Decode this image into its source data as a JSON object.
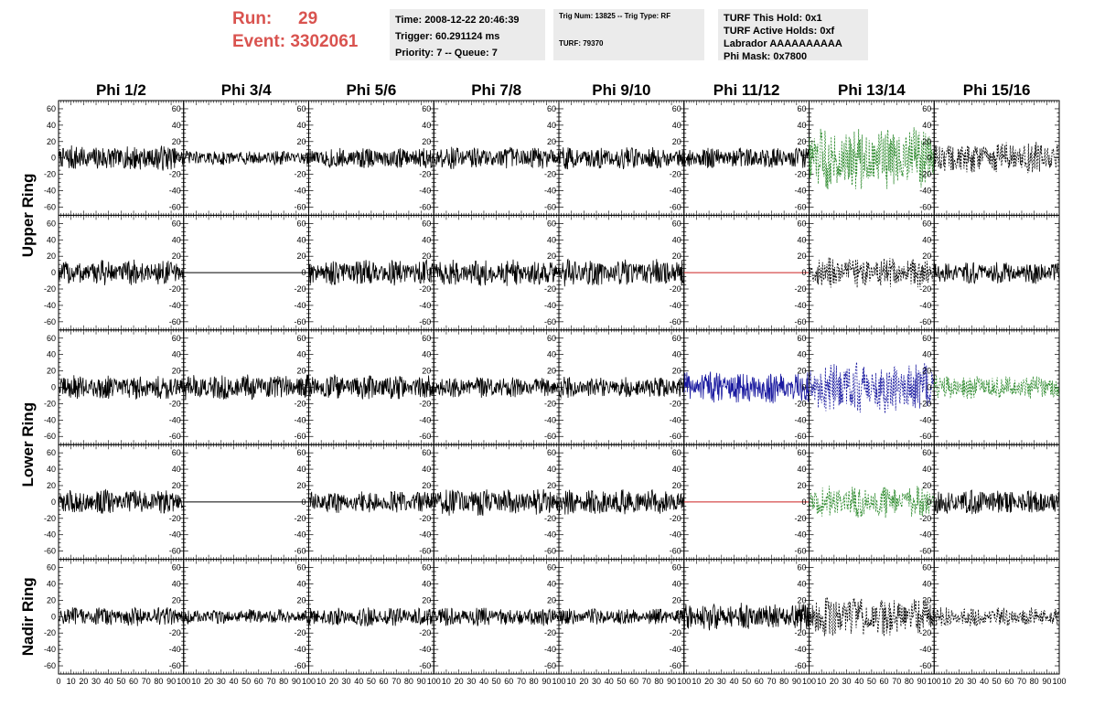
{
  "header": {
    "run_label": "Run:",
    "run_value": "29",
    "event_label": "Event:",
    "event_value": "3302061",
    "time_line": "Time: 2008-12-22 20:46:39",
    "trigger_line": "Trigger: 60.291124 ms",
    "priority_line": "Priority: 7 -- Queue: 7",
    "trig_num_line": "Trig Num: 13825 -- Trig Type: RF",
    "turf_line": "TURF: 79370",
    "turf_hold_line": "TURF This Hold: 0x1",
    "turf_active_line": "TURF Active Holds: 0xf",
    "labrador_line": "Labrador AAAAAAAAAA",
    "phi_mask_line": "Phi Mask: 0x7800"
  },
  "colors": {
    "header_text": "#d9534f",
    "info_bg": "#ebebeb",
    "trace_default": "#000000",
    "trace_green": "#2e8b2e",
    "trace_blue": "#1a1aa0",
    "trace_red": "#cc2222"
  },
  "chart_data": {
    "type": "line",
    "columns": [
      "Phi 1/2",
      "Phi 3/4",
      "Phi 5/6",
      "Phi 7/8",
      "Phi 9/10",
      "Phi 11/12",
      "Phi 13/14",
      "Phi 15/16"
    ],
    "rows": [
      "Upper Ring",
      "Upper Ring",
      "Lower Ring",
      "Lower Ring",
      "Nadir Ring"
    ],
    "ring_labels": [
      "Upper Ring",
      "Lower Ring",
      "Nadir Ring"
    ],
    "ylim": [
      -70,
      70
    ],
    "y_ticks": [
      -60,
      -40,
      -20,
      0,
      20,
      40,
      60
    ],
    "xlim": [
      0,
      100
    ],
    "x_tick_labels": [
      "0",
      "10",
      "20",
      "30",
      "40",
      "50",
      "60",
      "70",
      "80",
      "90",
      "100"
    ],
    "panels": [
      [
        {
          "style": "solid",
          "color": "black",
          "amp": 16,
          "flat": false
        },
        {
          "style": "solid",
          "color": "black",
          "amp": 9,
          "flat": false
        },
        {
          "style": "solid",
          "color": "black",
          "amp": 13,
          "flat": false
        },
        {
          "style": "solid",
          "color": "black",
          "amp": 14,
          "flat": false
        },
        {
          "style": "solid",
          "color": "black",
          "amp": 14,
          "flat": false
        },
        {
          "style": "solid",
          "color": "black",
          "amp": 13,
          "flat": false
        },
        {
          "style": "dashed",
          "color": "green",
          "amp": 40,
          "flat": false
        },
        {
          "style": "dashed",
          "color": "black",
          "amp": 20,
          "flat": false
        }
      ],
      [
        {
          "style": "solid",
          "color": "black",
          "amp": 16,
          "flat": false
        },
        {
          "style": "solid",
          "color": "black",
          "amp": 0,
          "flat": true
        },
        {
          "style": "solid",
          "color": "black",
          "amp": 16,
          "flat": false
        },
        {
          "style": "solid",
          "color": "black",
          "amp": 17,
          "flat": false
        },
        {
          "style": "solid",
          "color": "black",
          "amp": 17,
          "flat": false
        },
        {
          "style": "solid",
          "color": "red",
          "amp": 0,
          "flat": true
        },
        {
          "style": "dashed",
          "color": "black",
          "amp": 19,
          "flat": false
        },
        {
          "style": "solid",
          "color": "black",
          "amp": 14,
          "flat": false
        }
      ],
      [
        {
          "style": "solid",
          "color": "black",
          "amp": 15,
          "flat": false
        },
        {
          "style": "solid",
          "color": "black",
          "amp": 16,
          "flat": false
        },
        {
          "style": "solid",
          "color": "black",
          "amp": 15,
          "flat": false
        },
        {
          "style": "solid",
          "color": "black",
          "amp": 13,
          "flat": false
        },
        {
          "style": "solid",
          "color": "black",
          "amp": 13,
          "flat": false
        },
        {
          "style": "solid",
          "color": "blue",
          "amp": 20,
          "flat": false
        },
        {
          "style": "dashed",
          "color": "blue",
          "amp": 34,
          "flat": false
        },
        {
          "style": "dashed",
          "color": "green",
          "amp": 15,
          "flat": false
        }
      ],
      [
        {
          "style": "solid",
          "color": "black",
          "amp": 15,
          "flat": false
        },
        {
          "style": "solid",
          "color": "black",
          "amp": 0,
          "flat": true
        },
        {
          "style": "solid",
          "color": "black",
          "amp": 14,
          "flat": false
        },
        {
          "style": "solid",
          "color": "black",
          "amp": 17,
          "flat": false
        },
        {
          "style": "solid",
          "color": "black",
          "amp": 16,
          "flat": false
        },
        {
          "style": "solid",
          "color": "red",
          "amp": 0,
          "flat": true
        },
        {
          "style": "dashed",
          "color": "green",
          "amp": 20,
          "flat": false
        },
        {
          "style": "solid",
          "color": "black",
          "amp": 15,
          "flat": false
        }
      ],
      [
        {
          "style": "solid",
          "color": "black",
          "amp": 12,
          "flat": false
        },
        {
          "style": "solid",
          "color": "black",
          "amp": 9,
          "flat": false
        },
        {
          "style": "solid",
          "color": "black",
          "amp": 12,
          "flat": false
        },
        {
          "style": "solid",
          "color": "black",
          "amp": 12,
          "flat": false
        },
        {
          "style": "solid",
          "color": "black",
          "amp": 10,
          "flat": false
        },
        {
          "style": "solid",
          "color": "black",
          "amp": 17,
          "flat": false
        },
        {
          "style": "dashed",
          "color": "black",
          "amp": 25,
          "flat": false
        },
        {
          "style": "dashed",
          "color": "black",
          "amp": 12,
          "flat": false
        }
      ]
    ]
  }
}
